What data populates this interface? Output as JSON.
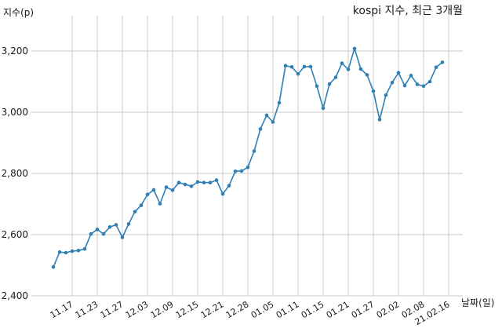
{
  "chart_data": {
    "type": "line",
    "title": "kospi 지수, 최근 3개월",
    "ylabel": "지수(p)",
    "xlabel": "날짜(일)",
    "ylim": [
      2400,
      3300
    ],
    "yticks": [
      2400,
      2600,
      2800,
      3000,
      3200
    ],
    "ytick_labels": [
      "2,400",
      "2,600",
      "2,800",
      "3,000",
      "3,200"
    ],
    "xtick_labels": [
      "11.17",
      "11.23",
      "11.27",
      "12.03",
      "12.09",
      "12.15",
      "12.21",
      "12.28",
      "01.05",
      "01.11",
      "01.15",
      "01.21",
      "01.27",
      "02.02",
      "02.08",
      "21.02.16"
    ],
    "xtick_positions": [
      3,
      7,
      11,
      15,
      19,
      23,
      27,
      31,
      35,
      39,
      43,
      47,
      51,
      55,
      59,
      63
    ],
    "grid": true,
    "colors": {
      "line": "#2f7fb5",
      "marker": "#2f7fb5"
    },
    "series": [
      {
        "values": [
          2494,
          2543,
          2541,
          2546,
          2548,
          2553,
          2602,
          2617,
          2602,
          2625,
          2632,
          2591,
          2635,
          2675,
          2696,
          2731,
          2746,
          2701,
          2755,
          2745,
          2770,
          2764,
          2758,
          2772,
          2770,
          2770,
          2778,
          2733,
          2760,
          2807,
          2808,
          2820,
          2873,
          2945,
          2990,
          2968,
          3031,
          3152,
          3148,
          3125,
          3149,
          3149,
          3085,
          3013,
          3092,
          3114,
          3160,
          3140,
          3208,
          3141,
          3122,
          3069,
          2976,
          3056,
          3097,
          3129,
          3087,
          3120,
          3091,
          3085,
          3100,
          3147,
          3163
        ]
      }
    ]
  }
}
